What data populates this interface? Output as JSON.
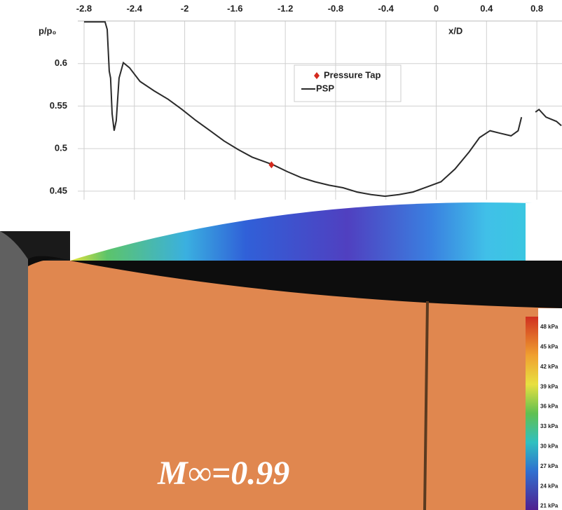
{
  "chart_data": {
    "type": "line",
    "y_label": "p/p₀",
    "x_label": "x/D",
    "xlim": [
      -2.85,
      1.0
    ],
    "xticks": [
      -2.8,
      -2.4,
      -2,
      -1.6,
      -1.2,
      -0.8,
      -0.4,
      0,
      0.4,
      0.8
    ],
    "ylim": [
      0.44,
      0.65
    ],
    "yticks": [
      0.6,
      0.55,
      0.5,
      0.45
    ],
    "grid": true,
    "x": [
      -2.8,
      -2.633,
      -2.616,
      -2.6,
      -2.589,
      -2.577,
      -2.561,
      -2.544,
      -2.522,
      -2.488,
      -2.438,
      -2.355,
      -2.244,
      -2.132,
      -2.021,
      -1.91,
      -1.798,
      -1.687,
      -1.576,
      -1.464,
      -1.353,
      -1.297,
      -1.186,
      -1.075,
      -0.964,
      -0.852,
      -0.741,
      -0.63,
      -0.518,
      -0.407,
      -0.296,
      -0.185,
      -0.073,
      0.038,
      0.149,
      0.261,
      0.344,
      0.428,
      0.511,
      0.595,
      0.651,
      0.678,
      0.72,
      0.789,
      0.817,
      0.873,
      0.956,
      0.995
    ],
    "series": [
      {
        "name": "PSP",
        "color": "#2a2a2a",
        "values": [
          0.649,
          0.649,
          0.64,
          0.591,
          0.583,
          0.541,
          0.521,
          0.533,
          0.583,
          0.601,
          0.595,
          0.579,
          0.568,
          0.558,
          0.546,
          0.533,
          0.521,
          0.509,
          0.499,
          0.49,
          0.484,
          0.481,
          0.473,
          0.466,
          0.461,
          0.457,
          0.454,
          0.449,
          0.446,
          0.444,
          0.446,
          0.449,
          0.455,
          0.461,
          0.476,
          0.496,
          0.513,
          0.521,
          0.518,
          0.515,
          0.521,
          0.537,
          null,
          0.543,
          0.546,
          0.537,
          0.532,
          0.527
        ]
      }
    ],
    "points": {
      "name": "Pressure Tap",
      "color": "#d42a1e",
      "x": [
        -1.31
      ],
      "values": [
        0.481
      ]
    },
    "legend": "top-center",
    "colorbar_labels": [
      "48 kPa",
      "45 kPa",
      "42 kPa",
      "39 kPa",
      "36 kPa",
      "33 kPa",
      "30 kPa",
      "27 kPa",
      "24 kPa",
      "21 kPa"
    ],
    "annotation": "M∞=0.99"
  }
}
